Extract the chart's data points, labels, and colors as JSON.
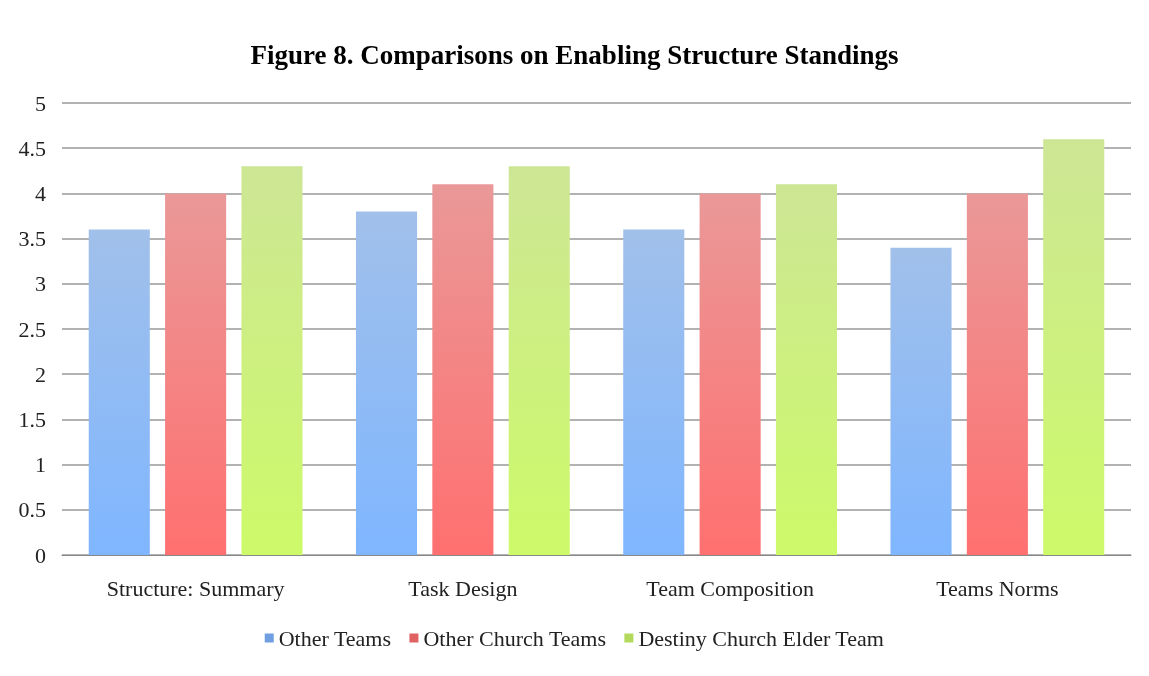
{
  "chart_data": {
    "type": "bar",
    "title": "Figure 8. Comparisons on Enabling Structure Standings",
    "categories": [
      "Structure: Summary",
      "Task Design",
      "Team Composition",
      "Teams Norms"
    ],
    "series": [
      {
        "name": "Other Teams",
        "color": "#6f9fe0",
        "values": [
          3.6,
          3.8,
          3.6,
          3.4
        ]
      },
      {
        "name": "Other Church Teams",
        "color": "#e06262",
        "values": [
          4.0,
          4.1,
          4.0,
          4.0
        ]
      },
      {
        "name": "Destiny Church Elder Team",
        "color": "#b3da5c",
        "values": [
          4.3,
          4.3,
          4.1,
          4.6
        ]
      }
    ],
    "ylim": [
      0,
      5
    ],
    "yticks": [
      0,
      0.5,
      1,
      1.5,
      2,
      2.5,
      3,
      3.5,
      4,
      4.5,
      5
    ],
    "grid": "y",
    "legend": "bottom"
  }
}
